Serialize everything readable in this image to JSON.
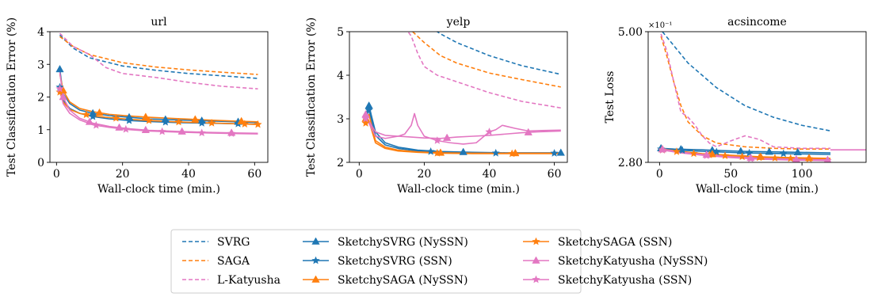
{
  "colors": {
    "blue": "#1f77b4",
    "orange": "#ff7f0e",
    "pink": "#e377c2"
  },
  "legend": {
    "placement": "bottom-center",
    "entries": [
      {
        "label": "SVRG",
        "color": "#1f77b4",
        "style": "dashed",
        "marker": "none"
      },
      {
        "label": "SAGA",
        "color": "#ff7f0e",
        "style": "dashed",
        "marker": "none"
      },
      {
        "label": "L-Katyusha",
        "color": "#e377c2",
        "style": "dashed",
        "marker": "none"
      },
      {
        "label": "SketchySVRG (NySSN)",
        "color": "#1f77b4",
        "style": "solid",
        "marker": "triangle"
      },
      {
        "label": "SketchySVRG (SSN)",
        "color": "#1f77b4",
        "style": "solid",
        "marker": "star"
      },
      {
        "label": "SketchySAGA (NySSN)",
        "color": "#ff7f0e",
        "style": "solid",
        "marker": "triangle"
      },
      {
        "label": "SketchySAGA (SSN)",
        "color": "#ff7f0e",
        "style": "solid",
        "marker": "star"
      },
      {
        "label": "SketchyKatyusha (NySSN)",
        "color": "#e377c2",
        "style": "solid",
        "marker": "triangle"
      },
      {
        "label": "SketchyKatyusha (SSN)",
        "color": "#e377c2",
        "style": "solid",
        "marker": "star"
      }
    ]
  },
  "chart_data": [
    {
      "type": "line",
      "title": "url",
      "xlabel": "Wall-clock time (min.)",
      "ylabel": "Test Classification Error (%)",
      "xlim": [
        -2,
        64
      ],
      "ylim": [
        0,
        4
      ],
      "xticks": [
        0,
        20,
        40,
        60
      ],
      "yticks": [
        0,
        1,
        2,
        3,
        4
      ],
      "xtick_labels": [
        "0",
        "20",
        "40",
        "60"
      ],
      "ytick_labels": [
        "0",
        "1",
        "2",
        "3",
        "4"
      ],
      "grid": false,
      "series": [
        {
          "name": "SVRG",
          "x": [
            1,
            5,
            10,
            20,
            30,
            40,
            50,
            61
          ],
          "y": [
            3.9,
            3.5,
            3.2,
            2.95,
            2.82,
            2.72,
            2.65,
            2.57
          ]
        },
        {
          "name": "SAGA",
          "x": [
            1,
            5,
            10,
            20,
            30,
            40,
            50,
            61
          ],
          "y": [
            3.85,
            3.55,
            3.3,
            3.05,
            2.92,
            2.83,
            2.76,
            2.69
          ]
        },
        {
          "name": "L-Katyusha",
          "x": [
            1,
            5,
            10,
            15,
            20,
            30,
            40,
            50,
            61
          ],
          "y": [
            3.95,
            3.55,
            3.3,
            2.9,
            2.72,
            2.6,
            2.45,
            2.33,
            2.25
          ]
        },
        {
          "name": "SketchySVRG (NySSN)",
          "x": [
            1,
            2,
            4,
            7,
            11,
            16,
            22,
            28,
            36,
            45,
            55,
            61
          ],
          "y": [
            2.85,
            2.1,
            1.8,
            1.6,
            1.5,
            1.43,
            1.38,
            1.33,
            1.3,
            1.27,
            1.24,
            1.22
          ],
          "markers_x": [
            1,
            11,
            22,
            33,
            44,
            55
          ]
        },
        {
          "name": "SketchySVRG (SSN)",
          "x": [
            1,
            2,
            4,
            7,
            11,
            16,
            22,
            28,
            36,
            45,
            55,
            61
          ],
          "y": [
            2.3,
            1.9,
            1.65,
            1.5,
            1.4,
            1.33,
            1.28,
            1.25,
            1.22,
            1.2,
            1.18,
            1.17
          ],
          "markers_x": [
            1,
            11,
            22,
            33,
            44,
            55
          ]
        },
        {
          "name": "SketchySAGA (NySSN)",
          "x": [
            1,
            2,
            4,
            7,
            11,
            16,
            22,
            28,
            36,
            45,
            55,
            61
          ],
          "y": [
            2.7,
            2.2,
            1.85,
            1.65,
            1.55,
            1.47,
            1.42,
            1.38,
            1.34,
            1.3,
            1.26,
            1.24
          ],
          "markers_x": [
            2,
            13,
            27,
            42,
            56
          ]
        },
        {
          "name": "SketchySAGA (SSN)",
          "x": [
            1,
            2,
            4,
            7,
            11,
            16,
            22,
            28,
            36,
            45,
            55,
            61
          ],
          "y": [
            2.15,
            1.85,
            1.62,
            1.5,
            1.42,
            1.37,
            1.32,
            1.28,
            1.24,
            1.21,
            1.18,
            1.16
          ],
          "markers_x": [
            1,
            9,
            18,
            28,
            37,
            47,
            57,
            61
          ]
        },
        {
          "name": "SketchyKatyusha (NySSN)",
          "x": [
            1,
            2,
            4,
            7,
            11,
            16,
            22,
            28,
            36,
            45,
            55,
            61
          ],
          "y": [
            2.75,
            2.0,
            1.6,
            1.35,
            1.2,
            1.1,
            1.03,
            0.98,
            0.95,
            0.92,
            0.9,
            0.89
          ],
          "markers_x": [
            2,
            10,
            19,
            27,
            38,
            53
          ]
        },
        {
          "name": "SketchyKatyusha (SSN)",
          "x": [
            1,
            2,
            4,
            7,
            11,
            16,
            22,
            28,
            36,
            45,
            55,
            61
          ],
          "y": [
            2.25,
            1.8,
            1.5,
            1.3,
            1.15,
            1.07,
            1.0,
            0.96,
            0.93,
            0.9,
            0.88,
            0.87
          ],
          "markers_x": [
            1,
            12,
            21,
            32,
            44,
            53
          ]
        }
      ]
    },
    {
      "type": "line",
      "title": "yelp",
      "xlabel": "Wall-clock time (min.)",
      "ylabel": "Test Classification Error (%)",
      "xlim": [
        -3,
        64
      ],
      "ylim": [
        2,
        5
      ],
      "xticks": [
        0,
        20,
        40,
        60
      ],
      "yticks": [
        2,
        3,
        4,
        5
      ],
      "xtick_labels": [
        "0",
        "20",
        "40",
        "60"
      ],
      "ytick_labels": [
        "2",
        "3",
        "4",
        "5"
      ],
      "grid": false,
      "series": [
        {
          "name": "SVRG",
          "x": [
            22,
            25,
            30,
            40,
            50,
            62
          ],
          "y": [
            5.1,
            4.95,
            4.75,
            4.45,
            4.22,
            4.02
          ]
        },
        {
          "name": "SAGA",
          "x": [
            15,
            20,
            25,
            30,
            40,
            50,
            62
          ],
          "y": [
            5.1,
            4.75,
            4.45,
            4.28,
            4.05,
            3.9,
            3.73
          ]
        },
        {
          "name": "L-Katyusha",
          "x": [
            14,
            16,
            18,
            20,
            24,
            30,
            40,
            50,
            62
          ],
          "y": [
            5.1,
            4.9,
            4.5,
            4.2,
            4.0,
            3.85,
            3.6,
            3.4,
            3.25
          ]
        },
        {
          "name": "SketchySVRG (NySSN)",
          "x": [
            2,
            3,
            5,
            8,
            12,
            18,
            25,
            35,
            45,
            55,
            62
          ],
          "y": [
            3.1,
            3.3,
            2.7,
            2.45,
            2.35,
            2.28,
            2.25,
            2.23,
            2.22,
            2.22,
            2.22
          ],
          "markers_x": [
            3,
            32,
            62
          ]
        },
        {
          "name": "SketchySVRG (SSN)",
          "x": [
            2,
            3,
            5,
            8,
            12,
            18,
            25,
            35,
            45,
            55,
            62
          ],
          "y": [
            3.0,
            3.2,
            2.62,
            2.4,
            2.32,
            2.26,
            2.24,
            2.22,
            2.21,
            2.21,
            2.21
          ],
          "markers_x": [
            3,
            22,
            42,
            60
          ]
        },
        {
          "name": "SketchySAGA (NySSN)",
          "x": [
            2,
            3,
            5,
            8,
            12,
            18,
            25,
            35,
            45,
            55,
            62
          ],
          "y": [
            3.0,
            3.1,
            2.5,
            2.35,
            2.28,
            2.24,
            2.22,
            2.21,
            2.21,
            2.21,
            2.21
          ],
          "markers_x": [
            2,
            25,
            48
          ]
        },
        {
          "name": "SketchySAGA (SSN)",
          "x": [
            2,
            3,
            5,
            8,
            12,
            18,
            25,
            35,
            45,
            55,
            62
          ],
          "y": [
            2.9,
            2.95,
            2.45,
            2.32,
            2.26,
            2.23,
            2.21,
            2.2,
            2.2,
            2.2,
            2.2
          ],
          "markers_x": [
            2,
            24,
            47
          ]
        },
        {
          "name": "SketchyKatyusha (NySSN)",
          "x": [
            2,
            3,
            5,
            8,
            12,
            16,
            20,
            25,
            30,
            35,
            40,
            45,
            50,
            55,
            62
          ],
          "y": [
            3.1,
            2.95,
            2.7,
            2.62,
            2.6,
            2.58,
            2.56,
            2.55,
            2.58,
            2.6,
            2.62,
            2.65,
            2.68,
            2.7,
            2.72
          ],
          "markers_x": [
            2,
            27,
            52
          ]
        },
        {
          "name": "SketchyKatyusha (SSN)",
          "x": [
            2,
            3,
            5,
            8,
            12,
            14,
            16,
            17,
            18,
            20,
            24,
            28,
            32,
            36,
            40,
            42,
            44,
            48,
            52,
            56,
            62
          ],
          "y": [
            3.0,
            2.9,
            2.6,
            2.55,
            2.6,
            2.65,
            2.85,
            3.12,
            2.85,
            2.6,
            2.5,
            2.45,
            2.42,
            2.45,
            2.7,
            2.75,
            2.85,
            2.78,
            2.72,
            2.73,
            2.74
          ],
          "markers_x": [
            2,
            24,
            40
          ]
        }
      ]
    },
    {
      "type": "line",
      "title": "acsincome",
      "xlabel": "Wall-clock time (min.)",
      "ylabel": "Test Loss",
      "y_scale": "log",
      "y_offset_label": "×10⁻¹",
      "xlim": [
        -8,
        145
      ],
      "ylim": [
        2.8,
        5.0
      ],
      "xticks": [
        0,
        50,
        100
      ],
      "yticks": [
        2.8,
        5.0
      ],
      "xtick_labels": [
        "0",
        "50",
        "100"
      ],
      "ytick_labels": [
        "2.80",
        "5.00"
      ],
      "grid": false,
      "series": [
        {
          "name": "SVRG",
          "x": [
            2,
            10,
            20,
            40,
            60,
            80,
            100,
            120
          ],
          "y": [
            5.0,
            4.7,
            4.35,
            3.9,
            3.6,
            3.42,
            3.3,
            3.22
          ]
        },
        {
          "name": "SAGA",
          "x": [
            1,
            5,
            10,
            15,
            20,
            30,
            40,
            60,
            80,
            100,
            120
          ],
          "y": [
            4.9,
            4.5,
            4.0,
            3.6,
            3.35,
            3.15,
            3.05,
            3.0,
            2.98,
            2.97,
            2.97
          ]
        },
        {
          "name": "L-Katyusha",
          "x": [
            1,
            5,
            10,
            15,
            20,
            25,
            30,
            35,
            40,
            50,
            60,
            70,
            80,
            100,
            120
          ],
          "y": [
            4.95,
            4.6,
            4.0,
            3.5,
            3.42,
            3.3,
            3.15,
            3.05,
            3.0,
            3.08,
            3.15,
            3.1,
            3.0,
            2.98,
            2.98
          ]
        },
        {
          "name": "SketchySVRG (NySSN)",
          "x": [
            1,
            10,
            30,
            60,
            90,
            120
          ],
          "y": [
            2.98,
            2.97,
            2.96,
            2.94,
            2.93,
            2.92
          ],
          "markers_x": [
            1,
            15,
            37,
            57,
            77,
            97
          ]
        },
        {
          "name": "SketchySVRG (SSN)",
          "x": [
            1,
            10,
            30,
            60,
            90,
            120
          ],
          "y": [
            2.97,
            2.96,
            2.94,
            2.92,
            2.91,
            2.9
          ],
          "markers_x": [
            1,
            16,
            40,
            63,
            87
          ]
        },
        {
          "name": "SketchySAGA (NySSN)",
          "x": [
            1,
            15,
            30,
            50,
            70,
            90,
            120
          ],
          "y": [
            2.97,
            2.94,
            2.91,
            2.89,
            2.87,
            2.86,
            2.85
          ],
          "markers_x": [
            2,
            37,
            71,
            105
          ]
        },
        {
          "name": "SketchySAGA (SSN)",
          "x": [
            1,
            15,
            30,
            50,
            70,
            90,
            120
          ],
          "y": [
            2.96,
            2.93,
            2.9,
            2.88,
            2.86,
            2.85,
            2.84
          ],
          "markers_x": [
            2,
            12,
            24,
            35,
            46,
            58,
            70,
            81,
            92,
            105
          ]
        },
        {
          "name": "SketchyKatyusha (NySSN)",
          "x": [
            1,
            15,
            30,
            50,
            70,
            90,
            120
          ],
          "y": [
            2.97,
            2.93,
            2.9,
            2.87,
            2.85,
            2.84,
            2.83
          ],
          "markers_x": [
            2,
            33,
            64,
            96,
            118
          ]
        },
        {
          "name": "SketchyKatyusha (SSN)",
          "x": [
            1,
            15,
            30,
            50,
            70,
            90,
            120
          ],
          "y": [
            2.96,
            2.92,
            2.89,
            2.86,
            2.84,
            2.83,
            2.82
          ],
          "markers_x": [
            2,
            33,
            64,
            96,
            118
          ]
        }
      ],
      "extra_series": [
        {
          "name": "",
          "x": [
            120,
            145
          ],
          "y": [
            2.96,
            2.96
          ],
          "color": "#e377c2",
          "style": "solid"
        }
      ]
    }
  ]
}
